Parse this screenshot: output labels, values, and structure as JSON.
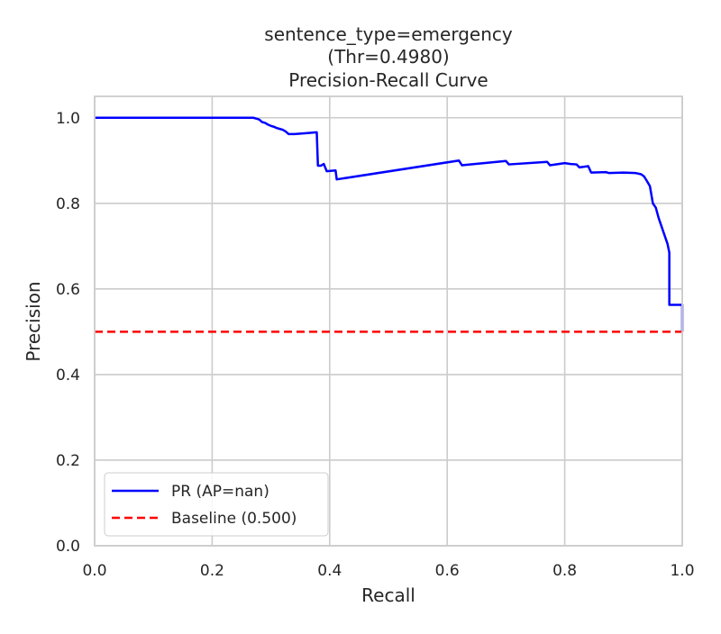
{
  "chart_data": {
    "type": "line",
    "title_lines": [
      "sentence_type=emergency",
      "(Thr=0.4980)",
      "Precision-Recall Curve"
    ],
    "xlabel": "Recall",
    "ylabel": "Precision",
    "xlim": [
      0,
      1
    ],
    "ylim": [
      0,
      1.05
    ],
    "xticks": [
      0.0,
      0.2,
      0.4,
      0.6,
      0.8,
      1.0
    ],
    "xtick_labels": [
      "0.0",
      "0.2",
      "0.4",
      "0.6",
      "0.8",
      "1.0"
    ],
    "yticks": [
      0.0,
      0.2,
      0.4,
      0.6,
      0.8,
      1.0
    ],
    "ytick_labels": [
      "0.0",
      "0.2",
      "0.4",
      "0.6",
      "0.8",
      "1.0"
    ],
    "grid": true,
    "legend_position": "lower-left",
    "series": [
      {
        "name": "PR (AP=nan)",
        "color": "#0000ff",
        "style": "solid",
        "points": [
          [
            0.0,
            1.0
          ],
          [
            0.27,
            1.0
          ],
          [
            0.275,
            0.998
          ],
          [
            0.28,
            0.996
          ],
          [
            0.285,
            0.99
          ],
          [
            0.29,
            0.988
          ],
          [
            0.295,
            0.984
          ],
          [
            0.3,
            0.981
          ],
          [
            0.305,
            0.979
          ],
          [
            0.31,
            0.976
          ],
          [
            0.315,
            0.974
          ],
          [
            0.32,
            0.972
          ],
          [
            0.325,
            0.968
          ],
          [
            0.33,
            0.962
          ],
          [
            0.34,
            0.962
          ],
          [
            0.36,
            0.964
          ],
          [
            0.378,
            0.966
          ],
          [
            0.38,
            0.888
          ],
          [
            0.385,
            0.888
          ],
          [
            0.39,
            0.892
          ],
          [
            0.395,
            0.875
          ],
          [
            0.41,
            0.877
          ],
          [
            0.412,
            0.856
          ],
          [
            0.62,
            0.9
          ],
          [
            0.625,
            0.889
          ],
          [
            0.7,
            0.899
          ],
          [
            0.705,
            0.891
          ],
          [
            0.77,
            0.897
          ],
          [
            0.775,
            0.889
          ],
          [
            0.8,
            0.894
          ],
          [
            0.81,
            0.892
          ],
          [
            0.82,
            0.891
          ],
          [
            0.825,
            0.884
          ],
          [
            0.84,
            0.887
          ],
          [
            0.845,
            0.872
          ],
          [
            0.87,
            0.873
          ],
          [
            0.875,
            0.871
          ],
          [
            0.9,
            0.872
          ],
          [
            0.92,
            0.871
          ],
          [
            0.93,
            0.868
          ],
          [
            0.935,
            0.863
          ],
          [
            0.94,
            0.852
          ],
          [
            0.945,
            0.84
          ],
          [
            0.95,
            0.8
          ],
          [
            0.955,
            0.79
          ],
          [
            0.96,
            0.765
          ],
          [
            0.965,
            0.745
          ],
          [
            0.97,
            0.725
          ],
          [
            0.975,
            0.705
          ],
          [
            0.978,
            0.685
          ],
          [
            0.978,
            0.563
          ],
          [
            0.99,
            0.563
          ],
          [
            1.0,
            0.563
          ],
          [
            1.0,
            0.5
          ]
        ]
      },
      {
        "name": "Baseline (0.500)",
        "color": "#ff0000",
        "style": "dashed",
        "points": [
          [
            0.0,
            0.5
          ],
          [
            1.0,
            0.5
          ]
        ]
      }
    ]
  }
}
